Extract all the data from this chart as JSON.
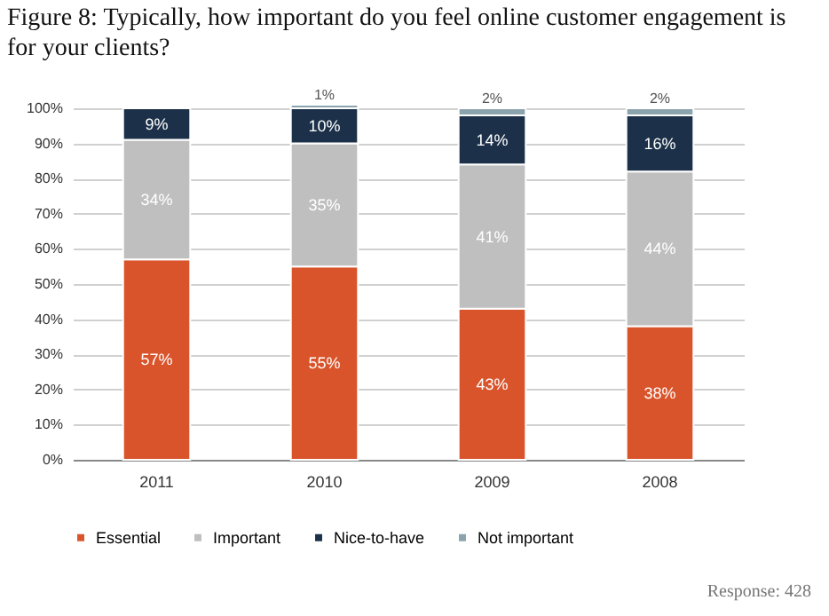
{
  "chart_data": {
    "type": "bar",
    "stacked": true,
    "title": "Figure 8: Typically, how important do you feel online customer engagement is for your clients?",
    "categories": [
      "2011",
      "2010",
      "2009",
      "2008"
    ],
    "series": [
      {
        "name": "Essential",
        "color": "#d9542b",
        "values": [
          57,
          55,
          43,
          38
        ],
        "value_labels": [
          "57%",
          "55%",
          "43%",
          "38%"
        ]
      },
      {
        "name": "Important",
        "color": "#bfbfbf",
        "values": [
          34,
          35,
          41,
          44
        ],
        "value_labels": [
          "34%",
          "35%",
          "41%",
          "44%"
        ]
      },
      {
        "name": "Nice-to-have",
        "color": "#1c3149",
        "values": [
          9,
          10,
          14,
          16
        ],
        "value_labels": [
          "9%",
          "10%",
          "14%",
          "16%"
        ]
      },
      {
        "name": "Not important",
        "color": "#8aa3ad",
        "values": [
          null,
          1,
          2,
          2
        ],
        "value_labels": [
          null,
          "1%",
          "2%",
          "2%"
        ]
      }
    ],
    "ylim": [
      0,
      101
    ],
    "yticks": [
      {
        "value": 0,
        "label": "0%"
      },
      {
        "value": 10,
        "label": "10%"
      },
      {
        "value": 20,
        "label": "20%"
      },
      {
        "value": 30,
        "label": "30%"
      },
      {
        "value": 40,
        "label": "40%"
      },
      {
        "value": 50,
        "label": "50%"
      },
      {
        "value": 60,
        "label": "60%"
      },
      {
        "value": 70,
        "label": "70%"
      },
      {
        "value": 80,
        "label": "80%"
      },
      {
        "value": 90,
        "label": "90%"
      },
      {
        "value": 100,
        "label": "100%"
      }
    ],
    "grid": "y",
    "legend": "bottom",
    "annotations": [
      "Response: 428"
    ]
  }
}
